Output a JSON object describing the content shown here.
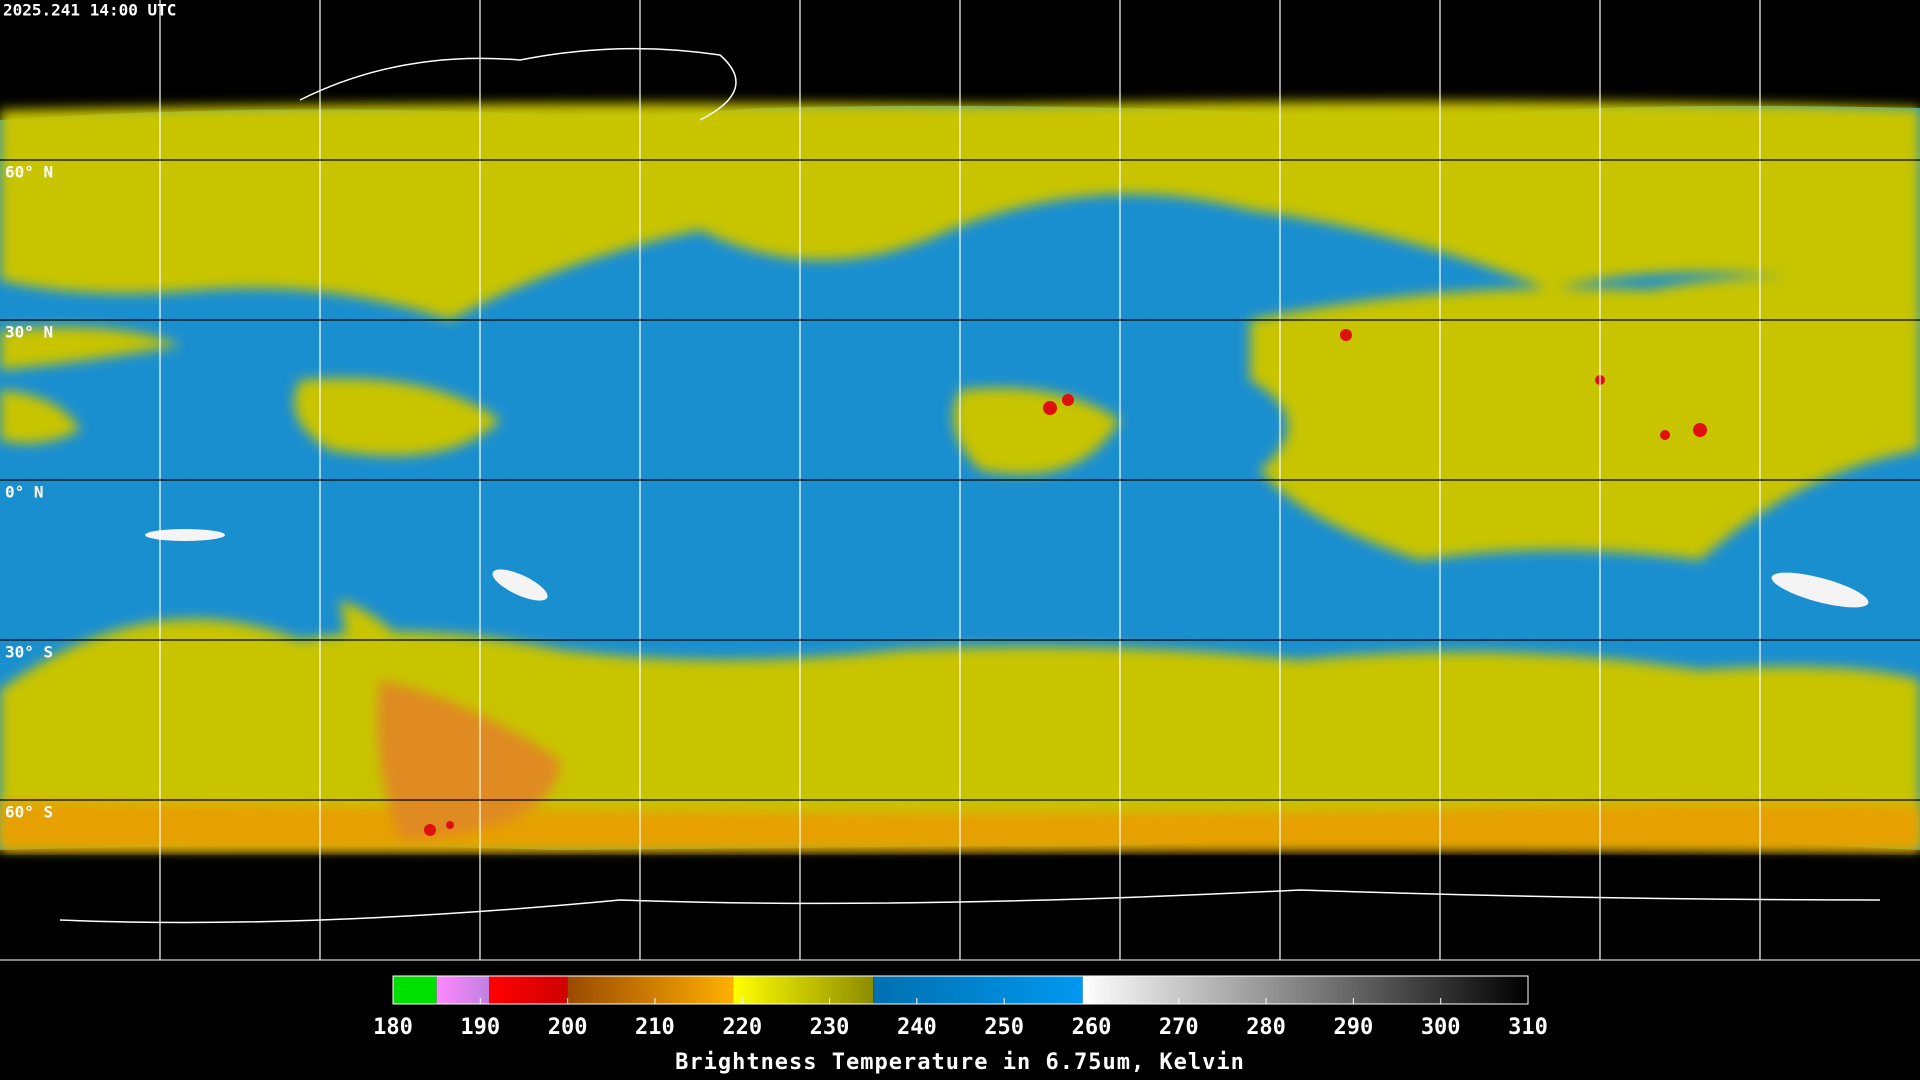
{
  "timestamp": "2025.241 14:00 UTC",
  "lat_labels": [
    {
      "value": 60,
      "label": "60° N"
    },
    {
      "value": 30,
      "label": "30° N"
    },
    {
      "value": 0,
      "label": "0° N"
    },
    {
      "value": -30,
      "label": "30° S"
    },
    {
      "value": -60,
      "label": "60° S"
    }
  ],
  "colorbar": {
    "title": "Brightness Temperature in 6.75um, Kelvin",
    "range": [
      180,
      310
    ],
    "ticks": [
      180,
      190,
      200,
      210,
      220,
      230,
      240,
      250,
      260,
      270,
      280,
      290,
      300,
      310
    ],
    "segments": [
      {
        "from": 180,
        "to": 185,
        "color": "#00e000",
        "color_end": "#00e000"
      },
      {
        "from": 185,
        "to": 191,
        "color": "#ff88ff",
        "color_end": "#c080e0"
      },
      {
        "from": 191,
        "to": 200,
        "color": "#ff0000",
        "color_end": "#d00000"
      },
      {
        "from": 200,
        "to": 219,
        "color": "#9a4a00",
        "color_end": "#ffb000"
      },
      {
        "from": 219,
        "to": 235,
        "color": "#ffff00",
        "color_end": "#8c8c00"
      },
      {
        "from": 235,
        "to": 259,
        "color": "#0070b0",
        "color_end": "#0098f0"
      },
      {
        "from": 259,
        "to": 310,
        "color": "#ffffff",
        "color_end": "#000000"
      }
    ]
  }
}
